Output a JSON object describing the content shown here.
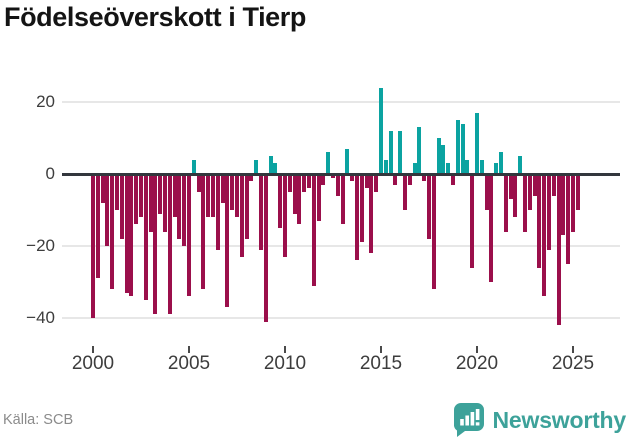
{
  "title": "Födelseöverskott i Tierp",
  "source": "Källa: SCB",
  "brand": {
    "name": "Newsworthy",
    "color": "#3da29a"
  },
  "colors": {
    "positive": "#0ba3a1",
    "negative": "#9b0f4b",
    "zero_line": "#33373d",
    "gridline": "#e7e7e7",
    "axis_text": "#3d3d3d",
    "source_text": "#8b8b8b"
  },
  "chart_data": {
    "type": "bar",
    "title": "Födelseöverskott i Tierp",
    "xlabel": "",
    "ylabel": "",
    "period": "quarterly",
    "start": "2000Q1",
    "end": "2025Q2",
    "ylim": [
      -44,
      26
    ],
    "grid": "horizontal",
    "legend": "none",
    "y_tick_values": [
      20,
      0,
      -20,
      -40
    ],
    "y_tick_labels": [
      "20",
      "0",
      "−20",
      "−40"
    ],
    "x_tick_labels": [
      "2000",
      "2005",
      "2010",
      "2015",
      "2020",
      "2025"
    ],
    "values": [
      -40,
      -29,
      -8,
      -20,
      -32,
      -10,
      -18,
      -33,
      -34,
      -14,
      -12,
      -35,
      -16,
      -39,
      -11,
      -16,
      -39,
      -12,
      -18,
      -20,
      -34,
      4,
      -5,
      -32,
      -12,
      -12,
      -21,
      -8,
      -37,
      -10,
      -12,
      -23,
      -18,
      -2,
      4,
      -21,
      -41,
      5,
      3,
      -15,
      -23,
      -5,
      -11,
      -14,
      -5,
      -4,
      -31,
      -13,
      -3,
      6,
      -1,
      -6,
      -14,
      7,
      -2,
      -24,
      -19,
      -4,
      -22,
      -5,
      24,
      4,
      12,
      -3,
      12,
      -10,
      -3,
      3,
      13,
      -2,
      -18,
      -32,
      10,
      8,
      3,
      -3,
      15,
      14,
      4,
      -26,
      17,
      4,
      -10,
      -30,
      3,
      6,
      -16,
      -7,
      -12,
      5,
      -16,
      -10,
      -6,
      -26,
      -34,
      -21,
      -6,
      -42,
      -17,
      -25,
      -16,
      -10
    ]
  }
}
